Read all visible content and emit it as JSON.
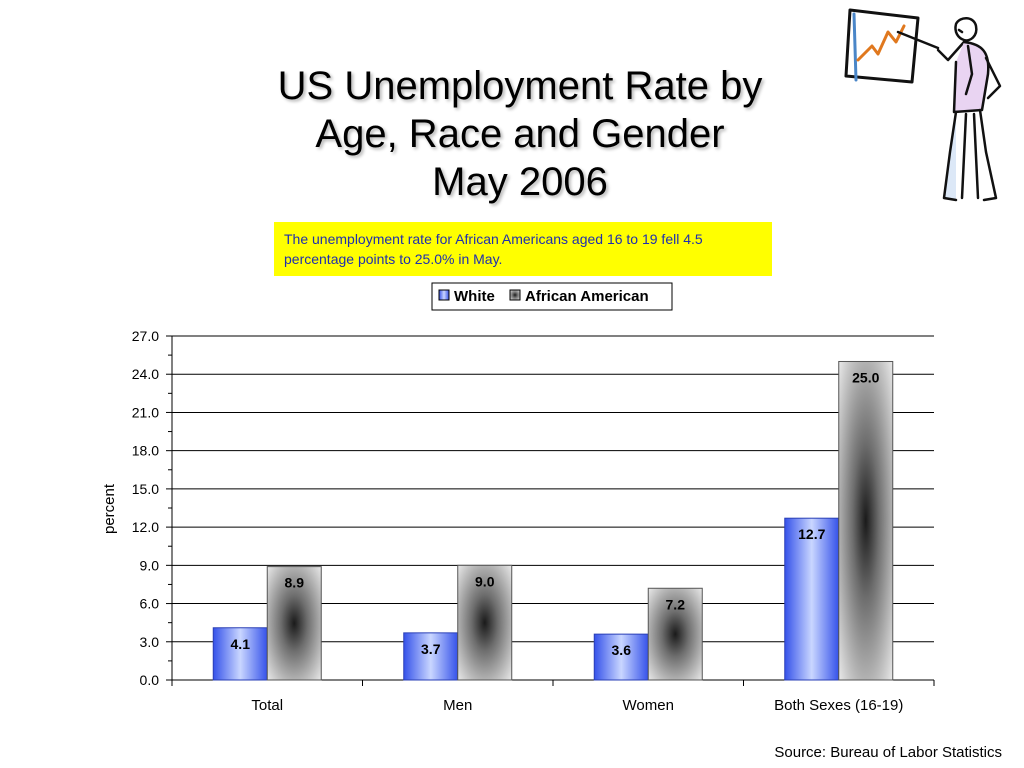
{
  "slide": {
    "title_lines": [
      "US Unemployment Rate by",
      "Age, Race and Gender",
      "May 2006"
    ],
    "callout_text": "The unemployment rate for African Americans aged 16 to 19 fell 4.5 percentage points to 25.0% in May.",
    "source": "Source: Bureau of Labor Statistics",
    "clipart_icon": "presenter-with-chart-icon"
  },
  "colors": {
    "callout_bg": "#ffff00",
    "callout_text": "#1f2fb0",
    "white_series": "#3c64f0",
    "african_american_series": "#9a9a9a"
  },
  "chart_data": {
    "type": "bar",
    "categories": [
      "Total",
      "Men",
      "Women",
      "Both Sexes (16-19)"
    ],
    "series": [
      {
        "name": "White",
        "values": [
          4.1,
          3.7,
          3.6,
          12.7
        ]
      },
      {
        "name": "African American",
        "values": [
          8.9,
          9.0,
          7.2,
          25.0
        ]
      }
    ],
    "ylabel": "percent",
    "ylim": [
      0,
      27
    ],
    "yticks": [
      "0.0",
      "3.0",
      "6.0",
      "9.0",
      "12.0",
      "15.0",
      "18.0",
      "21.0",
      "24.0",
      "27.0"
    ],
    "grid": true,
    "legend_position": "top-center",
    "data_labels": true
  }
}
